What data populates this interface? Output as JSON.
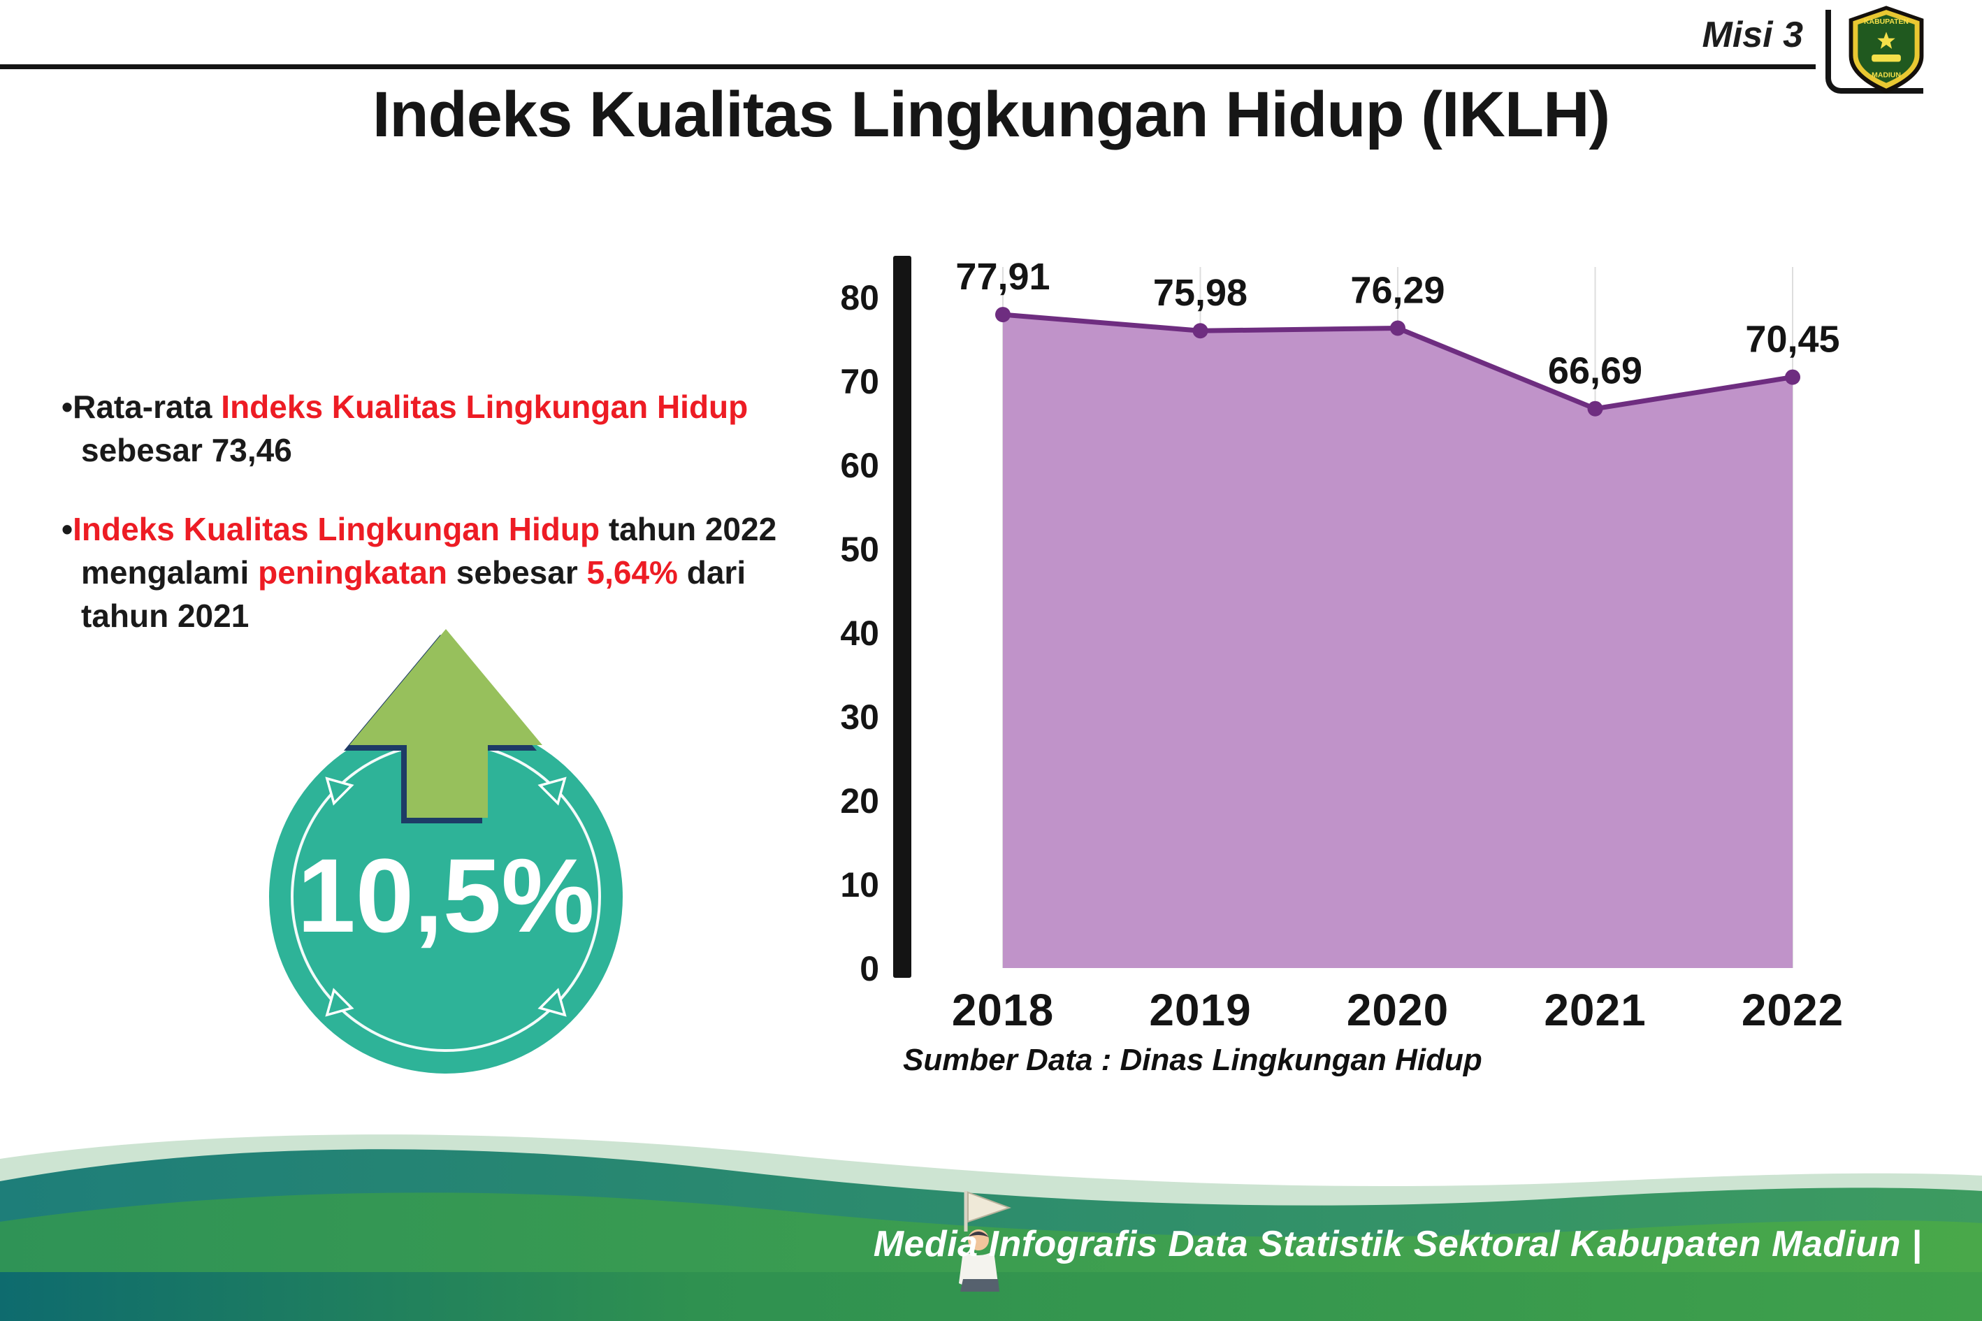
{
  "header": {
    "misi": "Misi 3",
    "title": "Indeks Kualitas Lingkungan Hidup (IKLH)",
    "logo_top": "KABUPATEN",
    "logo_bottom": "MADIUN"
  },
  "bullets": {
    "b1": {
      "l1s1": "•Rata-rata ",
      "l1s2": "Indeks Kualitas Lingkungan Hidup",
      "l2s1": "sebesar 73,46"
    },
    "b2": {
      "l1s1": "•",
      "l1s2": "Indeks Kualitas Lingkungan Hidup",
      "l1s3": " tahun 2022",
      "l2s1": "mengalami ",
      "l2s2": "peningkatan",
      "l2s3": " sebesar ",
      "l2s4": "5,64%",
      "l2s5": " dari",
      "l3s1": "tahun 2021"
    }
  },
  "badge": {
    "value": "10,5%"
  },
  "chart_data": {
    "type": "area",
    "title": "Indeks Kualitas Lingkungan Hidup (IKLH)",
    "categories": [
      "2018",
      "2019",
      "2020",
      "2021",
      "2022"
    ],
    "values": [
      77.91,
      75.98,
      76.29,
      66.69,
      70.45
    ],
    "point_labels": [
      "77,91",
      "75,98",
      "76,29",
      "66,69",
      "70,45"
    ],
    "yticks": [
      0,
      10,
      20,
      30,
      40,
      50,
      60,
      70,
      80
    ],
    "ylim": [
      0,
      80
    ],
    "xlabel": "",
    "ylabel": "",
    "grid": "vertical",
    "legend": "none",
    "fill_color": "#c093c9",
    "line_color": "#6e2d80",
    "source": "Sumber Data : Dinas Lingkungan Hidup"
  },
  "footer": {
    "credit": "Media Infografis Data Statistik Sektoral Kabupaten Madiun |"
  },
  "colors": {
    "accent-red": "#ed1c24",
    "badge-teal": "#2eb398",
    "arrow-green": "#97c05c",
    "chart-fill": "#c093c9",
    "chart-line": "#6e2d80",
    "footer-green": "#47a347",
    "footer-teal": "#1d7f78",
    "ink": "#161616"
  }
}
